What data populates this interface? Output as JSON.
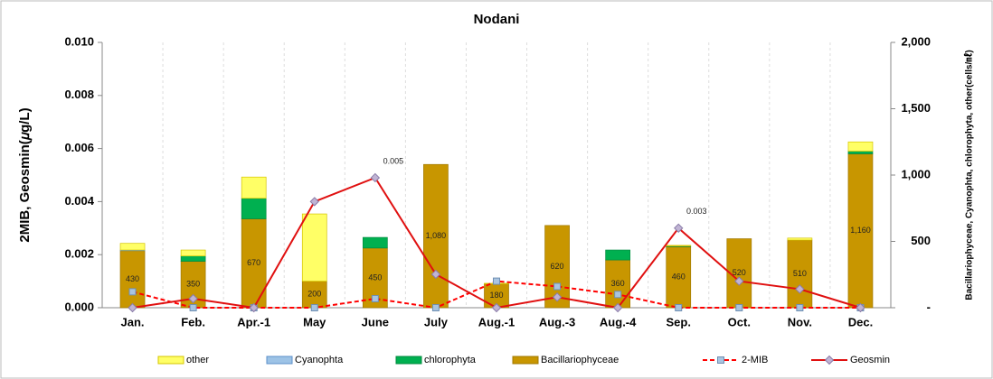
{
  "chart_data": {
    "type": "bar",
    "title": "Nodani",
    "y_label": "2MIB, Geosmin(𝜇g/L)",
    "y2_label": "Bacillariophyceae, Cyanophta, chlorophyta, other(cells/㎖)",
    "categories": [
      "Jan.",
      "Feb.",
      "Apr.-1",
      "May",
      "June",
      "July",
      "Aug.-1",
      "Aug.-3",
      "Aug.-4",
      "Sep.",
      "Oct.",
      "Nov.",
      "Dec."
    ],
    "ylim": [
      0,
      0.01
    ],
    "yticks": [
      {
        "value": 0,
        "label": "0.000"
      },
      {
        "value": 0.002,
        "label": "0.002"
      },
      {
        "value": 0.004,
        "label": "0.004"
      },
      {
        "value": 0.006,
        "label": "0.006"
      },
      {
        "value": 0.008,
        "label": "0.008"
      },
      {
        "value": 0.01,
        "label": "0.010"
      }
    ],
    "y2lim": [
      0,
      2000
    ],
    "y2ticks": [
      {
        "value": 0,
        "label": "-"
      },
      500,
      {
        "value": 1000,
        "label": "1,000"
      },
      {
        "value": 1500,
        "label": "1,500"
      },
      {
        "value": 2000,
        "label": "2,000"
      }
    ],
    "series": [
      {
        "name": "other",
        "type": "bar",
        "axis": "y2",
        "color": "#ffff66",
        "stroke": "#d4c400",
        "values": [
          50,
          45,
          160,
          507,
          0,
          0,
          4,
          0,
          0,
          5,
          0,
          15,
          70
        ]
      },
      {
        "name": "Cyanophta",
        "type": "bar",
        "axis": "y2",
        "color": "#9dc3e6",
        "stroke": "#5b8fc9",
        "values": [
          5,
          0,
          0,
          0,
          0,
          0,
          0,
          0,
          0,
          0,
          0,
          0,
          0
        ]
      },
      {
        "name": "chlorophyta",
        "type": "bar",
        "axis": "y2",
        "color": "#00b050",
        "stroke": "#008a3e",
        "values": [
          0,
          40,
          155,
          0,
          80,
          0,
          0,
          0,
          75,
          5,
          0,
          0,
          20
        ]
      },
      {
        "name": "Bacillariophyceae",
        "type": "bar",
        "axis": "y2",
        "color": "#c89600",
        "stroke": "#a07800",
        "values": [
          430,
          350,
          670,
          200,
          450,
          1080,
          180,
          620,
          360,
          460,
          520,
          510,
          1160
        ],
        "value_labels": [
          "430",
          "350",
          "670",
          "200",
          "450",
          "1,080",
          "180",
          "620",
          "360",
          "460",
          "520",
          "510",
          "1,160"
        ]
      },
      {
        "name": "2-MIB",
        "type": "line",
        "axis": "y",
        "color": "#ff0000",
        "dash": true,
        "marker": "square",
        "marker_color": "#a9c4e0",
        "values": [
          0.0006,
          0,
          0,
          0,
          0.00034,
          0,
          0.001,
          0.0008,
          0.0005,
          0,
          0,
          0,
          0
        ]
      },
      {
        "name": "Geosmin",
        "type": "line",
        "axis": "y",
        "color": "#e01010",
        "dash": false,
        "marker": "diamond",
        "marker_color": "#c0b4d4",
        "values": [
          0,
          0.00034,
          0,
          0.004,
          0.0049,
          0.00126,
          0,
          0.0004,
          0,
          0.003,
          0.001,
          0.0007,
          0
        ],
        "value_labels": [
          null,
          null,
          null,
          null,
          "0.005",
          null,
          null,
          null,
          null,
          "0.003",
          null,
          null,
          null
        ]
      }
    ]
  }
}
